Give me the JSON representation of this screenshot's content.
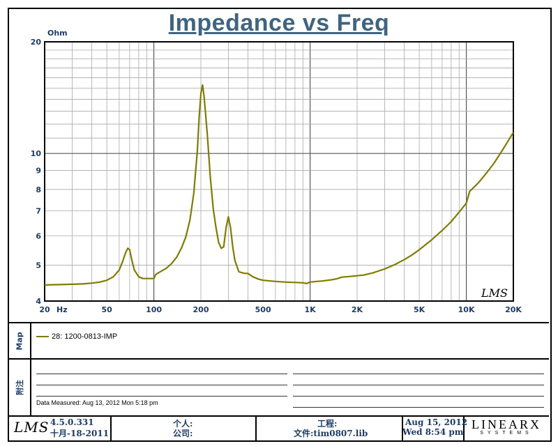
{
  "chart_data": {
    "type": "line",
    "title": "Impedance vs Freq",
    "ylabel": "Ohm",
    "xlabel": "Hz",
    "x_scale": "log",
    "y_scale": "log",
    "xlim": [
      20,
      20000
    ],
    "ylim": [
      4,
      20
    ],
    "x_ticks": [
      {
        "value": 20,
        "label": "20"
      },
      {
        "value": 50,
        "label": "50"
      },
      {
        "value": 100,
        "label": "100"
      },
      {
        "value": 200,
        "label": "200"
      },
      {
        "value": 500,
        "label": "500"
      },
      {
        "value": 1000,
        "label": "1K"
      },
      {
        "value": 2000,
        "label": "2K"
      },
      {
        "value": 5000,
        "label": "5K"
      },
      {
        "value": 10000,
        "label": "10K"
      },
      {
        "value": 20000,
        "label": "20K"
      }
    ],
    "y_ticks": [
      {
        "value": 4,
        "label": "4"
      },
      {
        "value": 5,
        "label": "5"
      },
      {
        "value": 6,
        "label": "6"
      },
      {
        "value": 7,
        "label": "7"
      },
      {
        "value": 8,
        "label": "8"
      },
      {
        "value": 9,
        "label": "9"
      },
      {
        "value": 10,
        "label": "10"
      },
      {
        "value": 20,
        "label": "20"
      }
    ],
    "grid": true,
    "watermark": "LMS",
    "series": [
      {
        "name": "28: 1200-0813-IMP",
        "color": "#7f7b00",
        "points": [
          [
            20,
            4.42
          ],
          [
            25,
            4.43
          ],
          [
            30,
            4.44
          ],
          [
            35,
            4.45
          ],
          [
            40,
            4.47
          ],
          [
            45,
            4.5
          ],
          [
            50,
            4.55
          ],
          [
            55,
            4.65
          ],
          [
            60,
            4.85
          ],
          [
            63,
            5.1
          ],
          [
            66,
            5.4
          ],
          [
            68,
            5.55
          ],
          [
            70,
            5.5
          ],
          [
            72,
            5.2
          ],
          [
            75,
            4.85
          ],
          [
            80,
            4.65
          ],
          [
            85,
            4.6
          ],
          [
            90,
            4.6
          ],
          [
            95,
            4.6
          ],
          [
            100,
            4.6
          ],
          [
            103,
            4.72
          ],
          [
            110,
            4.8
          ],
          [
            120,
            4.9
          ],
          [
            130,
            5.05
          ],
          [
            140,
            5.25
          ],
          [
            150,
            5.55
          ],
          [
            160,
            5.95
          ],
          [
            170,
            6.6
          ],
          [
            180,
            7.8
          ],
          [
            190,
            10.2
          ],
          [
            195,
            12.5
          ],
          [
            200,
            14.5
          ],
          [
            205,
            15.3
          ],
          [
            210,
            14.2
          ],
          [
            220,
            11.2
          ],
          [
            230,
            8.6
          ],
          [
            240,
            7.1
          ],
          [
            250,
            6.3
          ],
          [
            260,
            5.75
          ],
          [
            270,
            5.55
          ],
          [
            280,
            5.6
          ],
          [
            290,
            6.3
          ],
          [
            300,
            6.75
          ],
          [
            310,
            6.3
          ],
          [
            320,
            5.6
          ],
          [
            330,
            5.15
          ],
          [
            350,
            4.8
          ],
          [
            380,
            4.75
          ],
          [
            400,
            4.75
          ],
          [
            430,
            4.65
          ],
          [
            470,
            4.58
          ],
          [
            500,
            4.55
          ],
          [
            600,
            4.52
          ],
          [
            700,
            4.5
          ],
          [
            800,
            4.49
          ],
          [
            900,
            4.48
          ],
          [
            950,
            4.46
          ],
          [
            1000,
            4.5
          ],
          [
            1100,
            4.52
          ],
          [
            1200,
            4.53
          ],
          [
            1400,
            4.57
          ],
          [
            1500,
            4.6
          ],
          [
            1600,
            4.64
          ],
          [
            1800,
            4.66
          ],
          [
            2000,
            4.68
          ],
          [
            2200,
            4.7
          ],
          [
            2500,
            4.76
          ],
          [
            3000,
            4.88
          ],
          [
            3500,
            5.02
          ],
          [
            4000,
            5.17
          ],
          [
            4500,
            5.33
          ],
          [
            5000,
            5.5
          ],
          [
            6000,
            5.85
          ],
          [
            7000,
            6.2
          ],
          [
            8000,
            6.55
          ],
          [
            9000,
            6.95
          ],
          [
            9500,
            7.15
          ],
          [
            10000,
            7.35
          ],
          [
            10500,
            7.9
          ],
          [
            11000,
            8.05
          ],
          [
            12000,
            8.35
          ],
          [
            13000,
            8.7
          ],
          [
            14000,
            9.05
          ],
          [
            15000,
            9.4
          ],
          [
            16000,
            9.8
          ],
          [
            17000,
            10.2
          ],
          [
            18000,
            10.6
          ],
          [
            19000,
            11.0
          ],
          [
            20000,
            11.4
          ]
        ]
      }
    ]
  },
  "map": {
    "label": "Map",
    "entries": [
      {
        "label": "28: 1200-0813-IMP",
        "color": "#7f7b00"
      }
    ]
  },
  "notes": {
    "label": "附注",
    "measured": "Data Measured: Aug 13, 2012  Mon  5:18 pm"
  },
  "footer": {
    "logo": "LMS",
    "version": "4.5.0.331",
    "build_date": "十月-18-2011",
    "person_label": "个人:",
    "company_label": "公司:",
    "project_label": "工程:",
    "file_label": "文件:tim0807.lib",
    "date": "Aug 15, 2012",
    "time": "Wed  8:54 pm",
    "brand": "LINEARX",
    "brand_sub": "SYSTEMS"
  }
}
